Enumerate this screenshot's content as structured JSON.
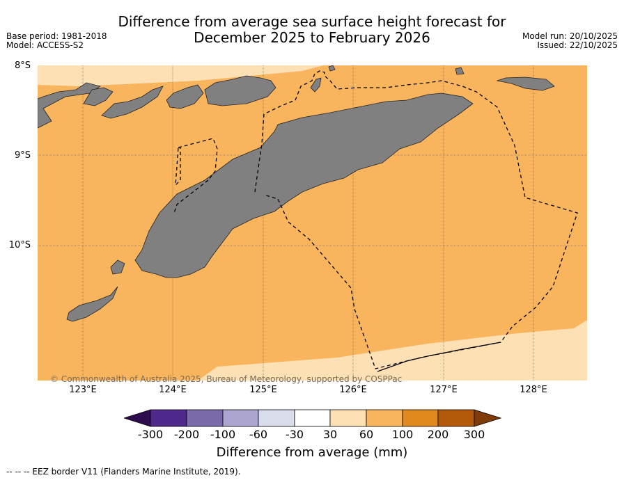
{
  "title_line1": "Difference from average sea surface height forecast for",
  "title_line2": "December 2025 to February 2026",
  "base_period": "Base period: 1981-2018",
  "model": "Model: ACCESS-S2",
  "model_run": "Model run: 20/10/2025",
  "issued": "Issued: 22/10/2025",
  "lat_labels": [
    "8°S",
    "9°S",
    "10°S"
  ],
  "lon_labels": [
    "123°E",
    "124°E",
    "125°E",
    "126°E",
    "127°E",
    "128°E"
  ],
  "copyright": "© Commonwealth of Australia 2025, Bureau of Meteorology, supported by COSPPac",
  "colorbar": {
    "title": "Difference from average (mm)",
    "ticks": [
      "-300",
      "-200",
      "-100",
      "-60",
      "-30",
      "30",
      "60",
      "100",
      "200",
      "300"
    ],
    "colors": {
      "below_-300": "#2e0a4f",
      "-300_-200": "#4f2a8c",
      "-200_-100": "#7b6bab",
      "-100_-60": "#aba5d0",
      "-60_-30": "#d9dceb",
      "-30_30": "#ffffff",
      "30_60": "#fde0b4",
      "60_100": "#f9b45e",
      "100_200": "#e08a1e",
      "200_300": "#b35a0a",
      "above_300": "#7f3b08"
    }
  },
  "map_colors": {
    "land": "#808080",
    "anomaly_30_60": "#fde0b4",
    "anomaly_60_100": "#f9b45e"
  },
  "legend_note": "--  --  -- EEZ border V11 (Flanders Marine Institute, 2019)."
}
